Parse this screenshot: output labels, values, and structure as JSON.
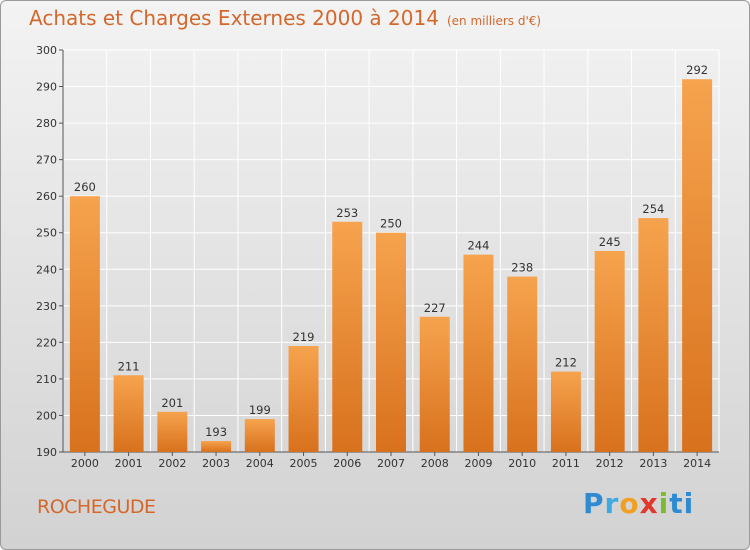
{
  "title": "Achats et Charges Externes 2000 à 2014",
  "subtitle": "(en milliers d'€)",
  "commune": "ROCHEGUDE",
  "logo": "Proxiti",
  "logo_letters": [
    "P",
    "r",
    "o",
    "x",
    "i",
    "ti"
  ],
  "colors": {
    "bar_light": "#f6a34e",
    "bar_dark": "#d8711d",
    "title": "#d4682c",
    "grid": "#ffffff"
  },
  "chart_data": {
    "type": "bar",
    "categories": [
      "2000",
      "2001",
      "2002",
      "2003",
      "2004",
      "2005",
      "2006",
      "2007",
      "2008",
      "2009",
      "2010",
      "2011",
      "2012",
      "2013",
      "2014"
    ],
    "values": [
      260,
      211,
      201,
      193,
      199,
      219,
      253,
      250,
      227,
      244,
      238,
      212,
      245,
      254,
      292
    ],
    "ylim": [
      190,
      300
    ],
    "yticks": [
      190,
      200,
      210,
      220,
      230,
      240,
      250,
      260,
      270,
      280,
      290,
      300
    ],
    "grid": true,
    "data_labels": true
  }
}
